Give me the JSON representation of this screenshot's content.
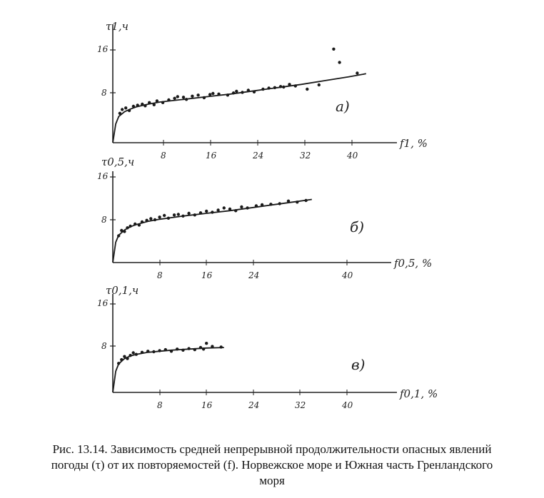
{
  "caption": {
    "line1": "Рис. 13.14. Зависимость средней непрерывной продолжительности опасных явлений",
    "line2": "погоды (τ) от их повторяемостей (f). Норвежское море и Южная часть Гренландского",
    "line3": "моря"
  },
  "chart_data": [
    {
      "type": "scatter",
      "panel_label": "а)",
      "ylabel": "τ1,ч",
      "xlabel": "f1, %",
      "x_ticks": [
        "8",
        "16",
        "24",
        "32",
        "40"
      ],
      "y_ticks": [
        "16",
        "8"
      ],
      "xlim": [
        0,
        46
      ],
      "ylim": [
        0,
        18
      ],
      "points": [
        [
          1.2,
          5.5
        ],
        [
          1.6,
          6.2
        ],
        [
          2.2,
          6.5
        ],
        [
          2.8,
          6.0
        ],
        [
          3.5,
          6.8
        ],
        [
          4.2,
          7.0
        ],
        [
          5.0,
          7.2
        ],
        [
          5.5,
          6.9
        ],
        [
          6.2,
          7.5
        ],
        [
          7.0,
          7.1
        ],
        [
          7.5,
          7.8
        ],
        [
          8.5,
          7.5
        ],
        [
          9.5,
          8.0
        ],
        [
          10.5,
          8.3
        ],
        [
          11.0,
          8.6
        ],
        [
          12.0,
          8.5
        ],
        [
          12.5,
          8.1
        ],
        [
          13.5,
          8.7
        ],
        [
          14.5,
          8.9
        ],
        [
          15.5,
          8.4
        ],
        [
          16.5,
          9.0
        ],
        [
          17.0,
          9.2
        ],
        [
          18.0,
          9.1
        ],
        [
          19.5,
          8.9
        ],
        [
          20.5,
          9.3
        ],
        [
          21.0,
          9.6
        ],
        [
          22.0,
          9.4
        ],
        [
          23.0,
          9.8
        ],
        [
          24.0,
          9.5
        ],
        [
          25.5,
          10.0
        ],
        [
          26.5,
          10.2
        ],
        [
          27.5,
          10.3
        ],
        [
          28.5,
          10.5
        ],
        [
          29.0,
          10.4
        ],
        [
          30.0,
          10.9
        ],
        [
          31.0,
          10.6
        ],
        [
          33.0,
          10.0
        ],
        [
          35.0,
          10.8
        ],
        [
          37.5,
          17.5
        ],
        [
          38.5,
          15.0
        ],
        [
          41.5,
          13.0
        ]
      ],
      "curve": [
        [
          0,
          0
        ],
        [
          0.5,
          3.5
        ],
        [
          1,
          4.9
        ],
        [
          2,
          5.8
        ],
        [
          3,
          6.3
        ],
        [
          4,
          6.7
        ],
        [
          6,
          7.2
        ],
        [
          8,
          7.6
        ],
        [
          12,
          8.1
        ],
        [
          16,
          8.6
        ],
        [
          20,
          9.1
        ],
        [
          24,
          9.7
        ],
        [
          28,
          10.3
        ],
        [
          32,
          10.9
        ],
        [
          36,
          11.6
        ],
        [
          40,
          12.3
        ],
        [
          43,
          12.9
        ]
      ]
    },
    {
      "type": "scatter",
      "panel_label": "б)",
      "ylabel": "τ0,5,ч",
      "xlabel": "f0,5, %",
      "x_ticks": [
        "8",
        "16",
        "24",
        "40"
      ],
      "y_ticks": [
        "16",
        "8"
      ],
      "xlim": [
        0,
        46
      ],
      "ylim": [
        0,
        18
      ],
      "points": [
        [
          1.0,
          5.0
        ],
        [
          1.5,
          6.0
        ],
        [
          2.0,
          5.8
        ],
        [
          2.5,
          6.5
        ],
        [
          3.0,
          6.8
        ],
        [
          3.8,
          7.2
        ],
        [
          4.5,
          7.0
        ],
        [
          5.0,
          7.6
        ],
        [
          5.8,
          7.9
        ],
        [
          6.5,
          8.2
        ],
        [
          7.2,
          8.0
        ],
        [
          8.0,
          8.5
        ],
        [
          8.8,
          8.8
        ],
        [
          9.5,
          8.3
        ],
        [
          10.5,
          8.9
        ],
        [
          11.2,
          9.0
        ],
        [
          12.0,
          8.7
        ],
        [
          13.0,
          9.2
        ],
        [
          14.0,
          8.9
        ],
        [
          15.0,
          9.3
        ],
        [
          16.0,
          9.6
        ],
        [
          17.0,
          9.4
        ],
        [
          18.0,
          9.8
        ],
        [
          19.0,
          10.2
        ],
        [
          20.0,
          10.0
        ],
        [
          21.0,
          9.7
        ],
        [
          22.0,
          10.4
        ],
        [
          23.0,
          10.2
        ],
        [
          24.5,
          10.6
        ],
        [
          25.5,
          10.8
        ],
        [
          27.0,
          10.9
        ],
        [
          28.5,
          11.0
        ],
        [
          30.0,
          11.5
        ],
        [
          31.5,
          11.3
        ],
        [
          33.0,
          11.6
        ]
      ],
      "curve": [
        [
          0,
          0
        ],
        [
          0.5,
          3.8
        ],
        [
          1,
          5.1
        ],
        [
          2,
          6.1
        ],
        [
          3,
          6.7
        ],
        [
          4,
          7.1
        ],
        [
          6,
          7.7
        ],
        [
          8,
          8.1
        ],
        [
          12,
          8.7
        ],
        [
          16,
          9.2
        ],
        [
          20,
          9.7
        ],
        [
          24,
          10.3
        ],
        [
          28,
          10.9
        ],
        [
          32,
          11.5
        ],
        [
          34,
          11.8
        ]
      ]
    },
    {
      "type": "scatter",
      "panel_label": "в)",
      "ylabel": "τ0,1,ч",
      "xlabel": "f0,1, %",
      "x_ticks": [
        "8",
        "16",
        "24",
        "32",
        "40"
      ],
      "y_ticks": [
        "16",
        "8"
      ],
      "xlim": [
        0,
        46
      ],
      "ylim": [
        0,
        18
      ],
      "points": [
        [
          1.0,
          5.5
        ],
        [
          1.5,
          6.2
        ],
        [
          2.0,
          6.8
        ],
        [
          2.5,
          6.4
        ],
        [
          3.0,
          7.0
        ],
        [
          3.5,
          7.5
        ],
        [
          4.0,
          7.2
        ],
        [
          5.0,
          7.6
        ],
        [
          6.0,
          7.8
        ],
        [
          7.0,
          7.7
        ],
        [
          8.0,
          7.9
        ],
        [
          9.0,
          8.1
        ],
        [
          10.0,
          7.8
        ],
        [
          11.0,
          8.2
        ],
        [
          12.0,
          8.0
        ],
        [
          13.0,
          8.3
        ],
        [
          14.0,
          8.1
        ],
        [
          15.0,
          8.5
        ],
        [
          15.5,
          8.2
        ],
        [
          16.0,
          9.3
        ],
        [
          17.0,
          8.7
        ],
        [
          18.5,
          8.6
        ]
      ],
      "curve": [
        [
          0,
          0
        ],
        [
          0.5,
          4.0
        ],
        [
          1,
          5.4
        ],
        [
          2,
          6.4
        ],
        [
          3,
          6.9
        ],
        [
          4,
          7.2
        ],
        [
          6,
          7.6
        ],
        [
          8,
          7.8
        ],
        [
          10,
          8.0
        ],
        [
          13,
          8.2
        ],
        [
          16,
          8.4
        ],
        [
          19,
          8.5
        ]
      ]
    }
  ]
}
